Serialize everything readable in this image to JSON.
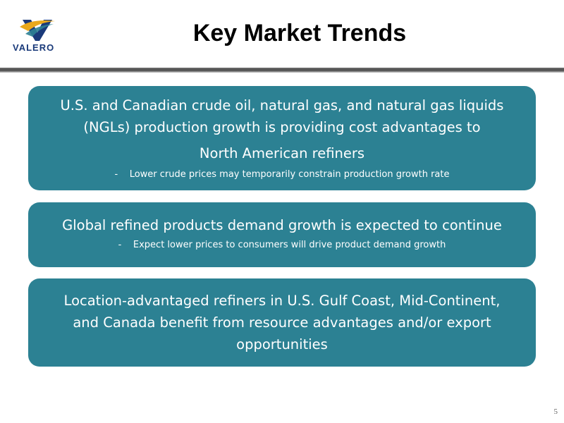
{
  "logo": {
    "text": "VALERO"
  },
  "title": "Key Market Trends",
  "boxes": [
    {
      "lines": [
        "U.S. and Canadian crude oil, natural gas, and natural gas liquids",
        "(NGLs) production growth is providing cost advantages to",
        "North American refiners"
      ],
      "sub": "-    Lower crude prices may temporarily constrain production growth rate"
    },
    {
      "lines": [
        "Global refined products demand growth is expected to continue"
      ],
      "sub": "-    Expect lower prices to consumers will drive product demand growth"
    },
    {
      "lines": [
        "Location-advantaged refiners in U.S. Gulf Coast, Mid-Continent,",
        "and Canada benefit from resource advantages and/or export",
        "opportunities"
      ]
    }
  ],
  "page_number": "5",
  "colors": {
    "box": "#2c8193",
    "brand_blue": "#1a3a7a",
    "brand_gold": "#e8a81c"
  }
}
